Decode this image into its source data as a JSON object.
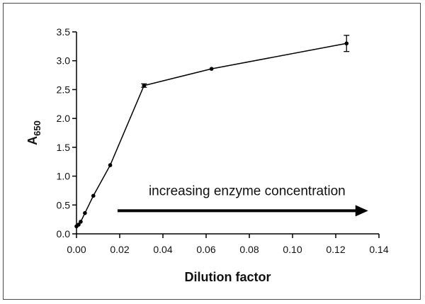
{
  "chart_data": {
    "type": "line",
    "title": "",
    "xlabel": "Dilution factor",
    "ylabel": {
      "main": "A",
      "subscript": "650"
    },
    "xlim": [
      0,
      0.14
    ],
    "ylim": [
      0,
      3.5
    ],
    "xticks": [
      0,
      0.02,
      0.04,
      0.06,
      0.08,
      0.1,
      0.12,
      0.14
    ],
    "xtick_labels": [
      "0.00",
      "0.02",
      "0.04",
      "0.06",
      "0.08",
      "0.10",
      "0.12",
      "0.14"
    ],
    "yticks": [
      0,
      0.5,
      1,
      1.5,
      2,
      2.5,
      3,
      3.5
    ],
    "ytick_labels": [
      "0.0",
      "0.5",
      "1.0",
      "1.5",
      "2.0",
      "2.5",
      "3.0",
      "3.5"
    ],
    "grid": false,
    "series": [
      {
        "x": [
          0.0,
          0.00098,
          0.00195,
          0.0039,
          0.0078,
          0.0156,
          0.03125,
          0.0625,
          0.125
        ],
        "y": [
          0.13,
          0.16,
          0.21,
          0.36,
          0.66,
          1.19,
          2.57,
          2.86,
          3.3
        ],
        "error": [
          0.0,
          0.0,
          0.0,
          0.0,
          0.0,
          0.0,
          0.03,
          0.0,
          0.14
        ]
      }
    ],
    "annotation": {
      "text": "increasing enzyme concentration",
      "arrow_x": [
        0.019,
        0.135
      ],
      "arrow_y": 0.4
    },
    "colors": {
      "line": "#000000",
      "marker": "#000000"
    }
  }
}
